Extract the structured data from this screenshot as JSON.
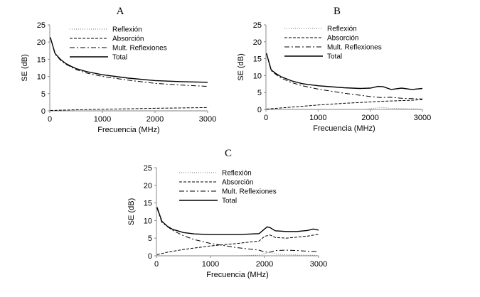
{
  "chart_data": [
    {
      "panel": "A",
      "type": "line",
      "xlabel": "Frecuencia (MHz)",
      "ylabel": "SE (dB)",
      "xlim": [
        0,
        3000
      ],
      "ylim": [
        0,
        25
      ],
      "xticks": [
        0,
        1000,
        2000,
        3000
      ],
      "yticks": [
        0,
        5,
        10,
        15,
        20,
        25
      ],
      "series": [
        {
          "name": "Reflexión",
          "style": "dotted",
          "x": [
            10,
            500,
            1000,
            1500,
            2000,
            2500,
            3000
          ],
          "y": [
            0.0,
            0.0,
            0.0,
            0.0,
            0.0,
            0.0,
            0.0
          ]
        },
        {
          "name": "Absorción",
          "style": "dashed",
          "x": [
            10,
            500,
            1000,
            1500,
            2000,
            2500,
            3000
          ],
          "y": [
            0.1,
            0.3,
            0.45,
            0.6,
            0.75,
            0.85,
            0.95
          ]
        },
        {
          "name": "Mult. Reflexiones",
          "style": "dashdot",
          "x": [
            10,
            100,
            200,
            300,
            400,
            500,
            700,
            1000,
            1500,
            2000,
            2500,
            3000
          ],
          "y": [
            21.3,
            16.5,
            14.8,
            13.6,
            12.8,
            12.0,
            11.0,
            10.0,
            8.9,
            8.0,
            7.5,
            7.1
          ]
        },
        {
          "name": "Total",
          "style": "solid",
          "x": [
            10,
            100,
            200,
            300,
            400,
            500,
            700,
            1000,
            1500,
            2000,
            2500,
            3000
          ],
          "y": [
            21.4,
            16.7,
            15.0,
            13.8,
            13.0,
            12.3,
            11.4,
            10.5,
            9.5,
            8.8,
            8.5,
            8.3
          ]
        }
      ]
    },
    {
      "panel": "B",
      "type": "line",
      "xlabel": "Frecuencia (MHz)",
      "ylabel": "SE (dB)",
      "xlim": [
        0,
        3000
      ],
      "ylim": [
        0,
        25
      ],
      "xticks": [
        0,
        1000,
        2000,
        3000
      ],
      "yticks": [
        0,
        5,
        10,
        15,
        20,
        25
      ],
      "series": [
        {
          "name": "Reflexión",
          "style": "dotted",
          "x": [
            10,
            500,
            1000,
            1500,
            1900,
            2100,
            2200,
            2400,
            2700,
            3000
          ],
          "y": [
            0.0,
            0.0,
            0.0,
            0.0,
            0.0,
            0.4,
            0.6,
            0.3,
            0.2,
            0.1
          ]
        },
        {
          "name": "Absorción",
          "style": "dashed",
          "x": [
            10,
            500,
            1000,
            1500,
            2000,
            2200,
            2400,
            2600,
            2800,
            3000
          ],
          "y": [
            0.1,
            0.7,
            1.3,
            1.8,
            2.2,
            2.4,
            2.5,
            2.6,
            2.7,
            2.9
          ]
        },
        {
          "name": "Mult. Reflexiones",
          "style": "dashdot",
          "x": [
            10,
            100,
            200,
            300,
            500,
            700,
            1000,
            1500,
            2000,
            2200,
            2400,
            2600,
            2800,
            3000
          ],
          "y": [
            16.5,
            11.5,
            10.2,
            9.2,
            7.9,
            7.0,
            6.0,
            4.8,
            3.8,
            3.5,
            3.6,
            3.3,
            3.2,
            3.1
          ]
        },
        {
          "name": "Total",
          "style": "solid",
          "x": [
            10,
            100,
            200,
            300,
            500,
            700,
            1000,
            1500,
            1800,
            2000,
            2150,
            2250,
            2400,
            2600,
            2800,
            3000
          ],
          "y": [
            16.6,
            11.7,
            10.5,
            9.6,
            8.4,
            7.6,
            7.0,
            6.4,
            6.2,
            6.3,
            6.8,
            6.7,
            5.9,
            6.3,
            5.9,
            6.2
          ]
        }
      ]
    },
    {
      "panel": "C",
      "type": "line",
      "xlabel": "Frecuencia (MHz)",
      "ylabel": "SE (dB)",
      "xlim": [
        0,
        3000
      ],
      "ylim": [
        0,
        25
      ],
      "xticks": [
        0,
        1000,
        2000,
        3000
      ],
      "yticks": [
        0,
        5,
        10,
        15,
        20,
        25
      ],
      "series": [
        {
          "name": "Reflexión",
          "style": "dotted",
          "x": [
            10,
            500,
            1000,
            1500,
            1900,
            2000,
            2100,
            2200,
            2400,
            2700,
            3000
          ],
          "y": [
            0.0,
            0.0,
            0.0,
            0.0,
            0.2,
            0.6,
            1.0,
            0.5,
            0.3,
            0.2,
            0.1
          ]
        },
        {
          "name": "Absorción",
          "style": "dashed",
          "x": [
            10,
            200,
            500,
            1000,
            1500,
            1900,
            2000,
            2100,
            2200,
            2400,
            2600,
            2800,
            3000
          ],
          "y": [
            0.3,
            1.0,
            1.8,
            2.8,
            3.5,
            4.2,
            5.5,
            5.9,
            5.2,
            5.0,
            5.3,
            5.6,
            6.1
          ]
        },
        {
          "name": "Mult. Reflexiones",
          "style": "dashdot",
          "x": [
            10,
            100,
            200,
            300,
            500,
            700,
            1000,
            1500,
            1900,
            2000,
            2100,
            2200,
            2400,
            2600,
            2800,
            3000
          ],
          "y": [
            13.5,
            9.5,
            8.3,
            7.2,
            5.7,
            4.6,
            3.5,
            2.3,
            1.6,
            1.1,
            1.0,
            1.5,
            1.6,
            1.5,
            1.3,
            1.2
          ]
        },
        {
          "name": "Total",
          "style": "solid",
          "x": [
            10,
            100,
            200,
            300,
            500,
            700,
            1000,
            1500,
            1900,
            2000,
            2050,
            2100,
            2200,
            2400,
            2600,
            2800,
            2900,
            3000
          ],
          "y": [
            13.8,
            9.8,
            8.4,
            7.5,
            6.6,
            6.2,
            6.0,
            6.0,
            6.3,
            7.6,
            8.2,
            8.0,
            7.1,
            6.9,
            6.9,
            7.2,
            7.6,
            7.3
          ]
        }
      ]
    }
  ]
}
